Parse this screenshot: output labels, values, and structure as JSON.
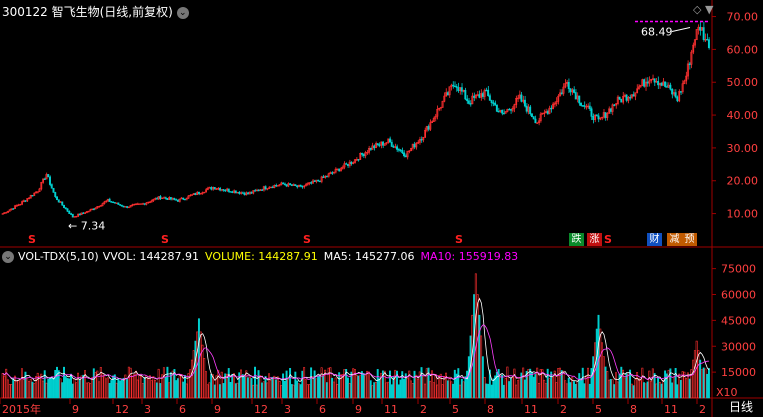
{
  "header": {
    "title": "300122 智飞生物(日线,前复权)",
    "menu_icon": "chevron-down-icon"
  },
  "toolbar": {
    "diamond": "◇",
    "menu": "▼"
  },
  "price_axis": {
    "labels": [
      "70.00",
      "60.00",
      "50.00",
      "40.00",
      "30.00",
      "20.00",
      "10.00"
    ],
    "values": [
      70,
      60,
      50,
      40,
      30,
      20,
      10
    ]
  },
  "annotations": {
    "high": "68.49",
    "low": "7.34"
  },
  "volume_header": {
    "indicator": "VOL-TDX(5,10)",
    "vvol": "VVOL: 144287.91",
    "volume": "VOLUME: 144287.91",
    "ma5": "MA5: 145277.06",
    "ma10": "MA10: 155919.83"
  },
  "volume_axis": {
    "labels": [
      "75000",
      "60000",
      "45000",
      "30000",
      "15000"
    ],
    "values": [
      75000,
      60000,
      45000,
      30000,
      15000
    ],
    "unit": "X10"
  },
  "time_axis": {
    "labels": [
      "2015年",
      "9",
      "12",
      "3",
      "6",
      "9",
      "12",
      "3",
      "6",
      "9",
      "11",
      "2",
      "5",
      "8",
      "11",
      "2",
      "5",
      "8",
      "11",
      "2"
    ]
  },
  "markers": {
    "s_marks": [
      "S",
      "S",
      "S",
      "S",
      "S",
      "S"
    ],
    "events": [
      {
        "text": "跌",
        "color": "green"
      },
      {
        "text": "涨",
        "color": "red"
      },
      {
        "text": "财",
        "color": "blue"
      },
      {
        "text": "减",
        "color": "orange"
      },
      {
        "text": "预",
        "color": "orange"
      }
    ]
  },
  "period_button": "日线",
  "colors": {
    "up": "#ff3030",
    "down": "#00d0d0",
    "axis": "#a00000",
    "grid_text": "#ff4040",
    "highline": "#ff00ff"
  },
  "chart_data": {
    "type": "candlestick",
    "title": "300122 智飞生物(日线,前复权)",
    "price_ylim": [
      5,
      72
    ],
    "price_close_anchors": [
      {
        "t": 0,
        "p": 10
      },
      {
        "t": 10,
        "p": 13
      },
      {
        "t": 20,
        "p": 17
      },
      {
        "t": 25,
        "p": 22
      },
      {
        "t": 30,
        "p": 15
      },
      {
        "t": 40,
        "p": 9
      },
      {
        "t": 50,
        "p": 11
      },
      {
        "t": 60,
        "p": 14
      },
      {
        "t": 70,
        "p": 12
      },
      {
        "t": 80,
        "p": 13
      },
      {
        "t": 90,
        "p": 15
      },
      {
        "t": 100,
        "p": 14
      },
      {
        "t": 110,
        "p": 16
      },
      {
        "t": 120,
        "p": 18
      },
      {
        "t": 130,
        "p": 17
      },
      {
        "t": 140,
        "p": 16
      },
      {
        "t": 150,
        "p": 18
      },
      {
        "t": 160,
        "p": 19
      },
      {
        "t": 170,
        "p": 18
      },
      {
        "t": 180,
        "p": 20
      },
      {
        "t": 190,
        "p": 23
      },
      {
        "t": 200,
        "p": 26
      },
      {
        "t": 210,
        "p": 30
      },
      {
        "t": 220,
        "p": 32
      },
      {
        "t": 230,
        "p": 28
      },
      {
        "t": 240,
        "p": 34
      },
      {
        "t": 250,
        "p": 43
      },
      {
        "t": 258,
        "p": 50
      },
      {
        "t": 266,
        "p": 44
      },
      {
        "t": 275,
        "p": 47
      },
      {
        "t": 285,
        "p": 40
      },
      {
        "t": 295,
        "p": 45
      },
      {
        "t": 305,
        "p": 38
      },
      {
        "t": 315,
        "p": 44
      },
      {
        "t": 322,
        "p": 50
      },
      {
        "t": 330,
        "p": 44
      },
      {
        "t": 340,
        "p": 38
      },
      {
        "t": 350,
        "p": 44
      },
      {
        "t": 360,
        "p": 47
      },
      {
        "t": 370,
        "p": 52
      },
      {
        "t": 380,
        "p": 48
      },
      {
        "t": 385,
        "p": 45
      },
      {
        "t": 390,
        "p": 52
      },
      {
        "t": 395,
        "p": 64
      },
      {
        "t": 398,
        "p": 67
      },
      {
        "t": 402,
        "p": 62
      }
    ],
    "high": 68.49,
    "low": 7.34,
    "volume_ylim": [
      0,
      80000
    ],
    "volume_spikes": [
      {
        "t": 112,
        "v": 46000
      },
      {
        "t": 270,
        "v": 72000
      },
      {
        "t": 340,
        "v": 48000
      },
      {
        "t": 396,
        "v": 33000
      },
      {
        "t": 110,
        "v": 33000
      },
      {
        "t": 268,
        "v": 31000
      },
      {
        "t": 342,
        "v": 27000
      }
    ],
    "volume_base": 12000,
    "ma5_volume": 145277.06,
    "ma10_volume": 155919.83
  }
}
